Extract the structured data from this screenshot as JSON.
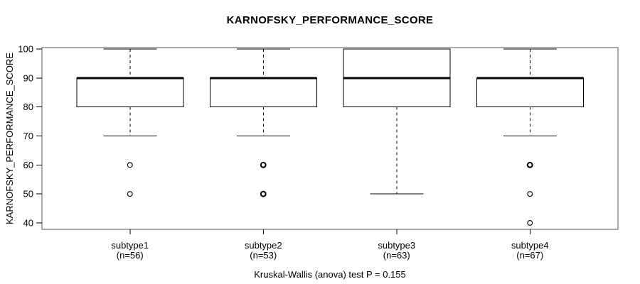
{
  "title": "KARNOFSKY_PERFORMANCE_SCORE",
  "caption": "Kruskal-Wallis (anova) test P = 0.155",
  "y_axis": {
    "label": "KARNOFSKY_PERFORMANCE_SCORE",
    "tick_labels": [
      "100",
      "90",
      "80",
      "70",
      "60",
      "50",
      "40"
    ]
  },
  "colors": {
    "line": "#000000",
    "frame": "#555555",
    "background": "#ffffff"
  },
  "chart_data": {
    "type": "boxplot",
    "title": "KARNOFSKY_PERFORMANCE_SCORE",
    "ylabel": "KARNOFSKY_PERFORMANCE_SCORE",
    "xlabel": "",
    "ylim": [
      40,
      100
    ],
    "yticks": [
      100,
      90,
      80,
      70,
      60,
      50,
      40
    ],
    "grid": false,
    "caption": "Kruskal-Wallis (anova) test P = 0.155",
    "groups": [
      {
        "label": "subtype1",
        "n_label": "(n=56)",
        "n": 56,
        "whisker_low": 70,
        "q1": 80,
        "median": 90,
        "q3": 90,
        "whisker_high": 100,
        "outliers": [
          {
            "value": 60,
            "bold": false
          },
          {
            "value": 50,
            "bold": false
          }
        ]
      },
      {
        "label": "subtype2",
        "n_label": "(n=53)",
        "n": 53,
        "whisker_low": 70,
        "q1": 80,
        "median": 90,
        "q3": 90,
        "whisker_high": 100,
        "outliers": [
          {
            "value": 60,
            "bold": true
          },
          {
            "value": 50,
            "bold": true
          }
        ]
      },
      {
        "label": "subtype3",
        "n_label": "(n=63)",
        "n": 63,
        "whisker_low": 50,
        "q1": 80,
        "median": 90,
        "q3": 100,
        "whisker_high": 100,
        "outliers": []
      },
      {
        "label": "subtype4",
        "n_label": "(n=67)",
        "n": 67,
        "whisker_low": 70,
        "q1": 80,
        "median": 90,
        "q3": 90,
        "whisker_high": 100,
        "outliers": [
          {
            "value": 60,
            "bold": true
          },
          {
            "value": 50,
            "bold": false
          },
          {
            "value": 40,
            "bold": false
          }
        ]
      }
    ]
  }
}
